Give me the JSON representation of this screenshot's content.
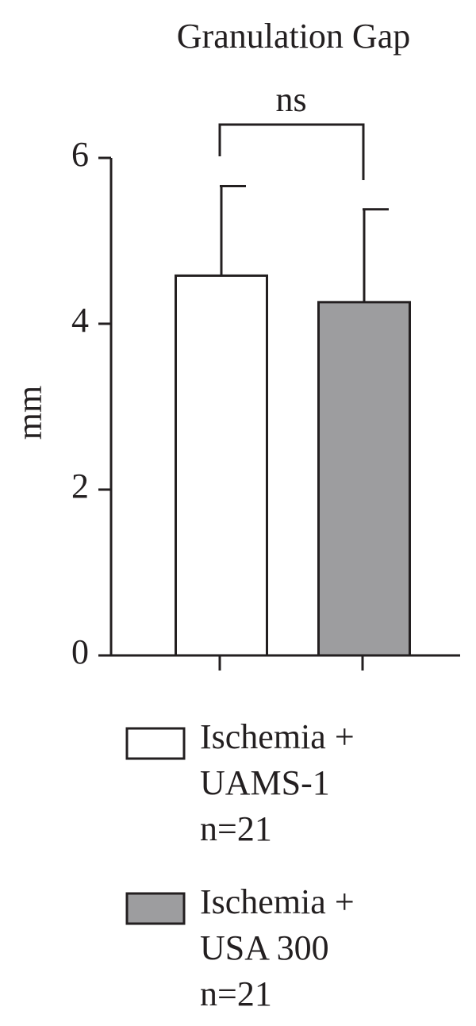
{
  "chart_data": {
    "type": "bar",
    "title": "Granulation Gap",
    "ylabel": "mm",
    "categories": [
      null
    ],
    "series": [
      {
        "name": "Ischemia + UAMS-1 n=21",
        "color": "#ffffff",
        "values": [
          4.58
        ],
        "errors": [
          1.08
        ]
      },
      {
        "name": "Ischemia + USA 300 n=21",
        "color": "#9d9d9f",
        "values": [
          4.26
        ],
        "errors": [
          1.12
        ]
      }
    ],
    "annotations": [
      "ns"
    ],
    "ylim": [
      0,
      6
    ],
    "yticks": [
      0,
      2,
      4,
      6
    ],
    "grid": false
  }
}
